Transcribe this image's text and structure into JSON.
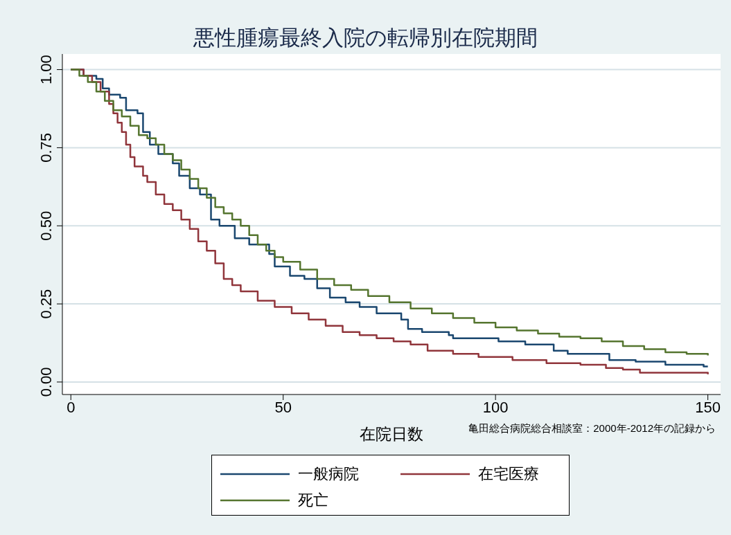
{
  "chart_data": {
    "type": "step",
    "title": "悪性腫瘍最終入院の転帰別在院期間",
    "xlabel": "在院日数",
    "annotations": [
      "亀田総合病院総合相談室：2000年-2012年の記録から"
    ],
    "xlim": [
      -2,
      153
    ],
    "xticks": [
      0,
      50,
      100,
      150
    ],
    "ylim": [
      -0.04,
      1.05
    ],
    "yticks": [
      {
        "value": 0,
        "label": "0.00"
      },
      {
        "value": 0.25,
        "label": "0.25"
      },
      {
        "value": 0.5,
        "label": "0.50"
      },
      {
        "value": 0.75,
        "label": "0.75"
      },
      {
        "value": 1,
        "label": "1.00"
      }
    ],
    "grid": "y",
    "legend": "bottom",
    "marker": "none",
    "line_style": "solid",
    "series": [
      {
        "name": "一般病院",
        "color": "#1a476f",
        "x": [
          0,
          3,
          6,
          7.5,
          9,
          11.6,
          13,
          15.7,
          17,
          18.6,
          20.6,
          24,
          25.5,
          28,
          30.4,
          33,
          35,
          38.6,
          42,
          46.7,
          48,
          51.6,
          55,
          58,
          61,
          64.7,
          68,
          72,
          77.8,
          79.4,
          82.7,
          89,
          90,
          100.7,
          107,
          113.7,
          117,
          126.8,
          133,
          140,
          149,
          150
        ],
        "values": [
          1,
          0.98,
          0.97,
          0.94,
          0.92,
          0.91,
          0.87,
          0.86,
          0.8,
          0.76,
          0.73,
          0.7,
          0.66,
          0.62,
          0.6,
          0.52,
          0.5,
          0.46,
          0.44,
          0.41,
          0.37,
          0.34,
          0.33,
          0.3,
          0.27,
          0.255,
          0.24,
          0.22,
          0.2,
          0.17,
          0.16,
          0.15,
          0.14,
          0.13,
          0.12,
          0.1,
          0.09,
          0.07,
          0.065,
          0.055,
          0.05,
          0.05
        ]
      },
      {
        "name": "在宅医療",
        "color": "#90353b",
        "x": [
          0,
          3,
          5,
          7,
          9,
          10,
          11,
          12,
          13,
          14,
          15,
          17,
          18,
          20,
          22,
          24,
          26,
          28,
          30,
          32,
          34,
          36,
          38,
          40,
          44,
          48,
          52,
          56,
          60,
          64,
          68,
          72,
          76,
          80,
          84,
          90,
          96,
          104,
          112,
          120,
          126,
          130,
          134,
          150
        ],
        "values": [
          1,
          0.98,
          0.96,
          0.93,
          0.89,
          0.86,
          0.83,
          0.8,
          0.76,
          0.72,
          0.69,
          0.66,
          0.64,
          0.6,
          0.57,
          0.55,
          0.52,
          0.49,
          0.45,
          0.42,
          0.38,
          0.33,
          0.31,
          0.29,
          0.26,
          0.24,
          0.22,
          0.2,
          0.18,
          0.16,
          0.15,
          0.14,
          0.13,
          0.12,
          0.1,
          0.09,
          0.08,
          0.07,
          0.06,
          0.055,
          0.045,
          0.04,
          0.03,
          0.025
        ]
      },
      {
        "name": "死亡",
        "color": "#55752f",
        "x": [
          0,
          2,
          4,
          6,
          8,
          10,
          12,
          14,
          16,
          18,
          20,
          22,
          24,
          26,
          28,
          30,
          32,
          34,
          36,
          38,
          40,
          42,
          44,
          46,
          48,
          50,
          54,
          58,
          62,
          66,
          70,
          75,
          80,
          85,
          90,
          95,
          100,
          105,
          110,
          115,
          120,
          125,
          130,
          135,
          140,
          145,
          150
        ],
        "values": [
          1,
          0.98,
          0.96,
          0.93,
          0.9,
          0.87,
          0.85,
          0.82,
          0.79,
          0.78,
          0.76,
          0.73,
          0.71,
          0.68,
          0.65,
          0.62,
          0.59,
          0.56,
          0.54,
          0.52,
          0.5,
          0.47,
          0.44,
          0.42,
          0.4,
          0.385,
          0.36,
          0.33,
          0.31,
          0.295,
          0.275,
          0.255,
          0.235,
          0.22,
          0.205,
          0.19,
          0.175,
          0.165,
          0.155,
          0.145,
          0.14,
          0.13,
          0.115,
          0.105,
          0.095,
          0.09,
          0.085
        ]
      }
    ]
  }
}
